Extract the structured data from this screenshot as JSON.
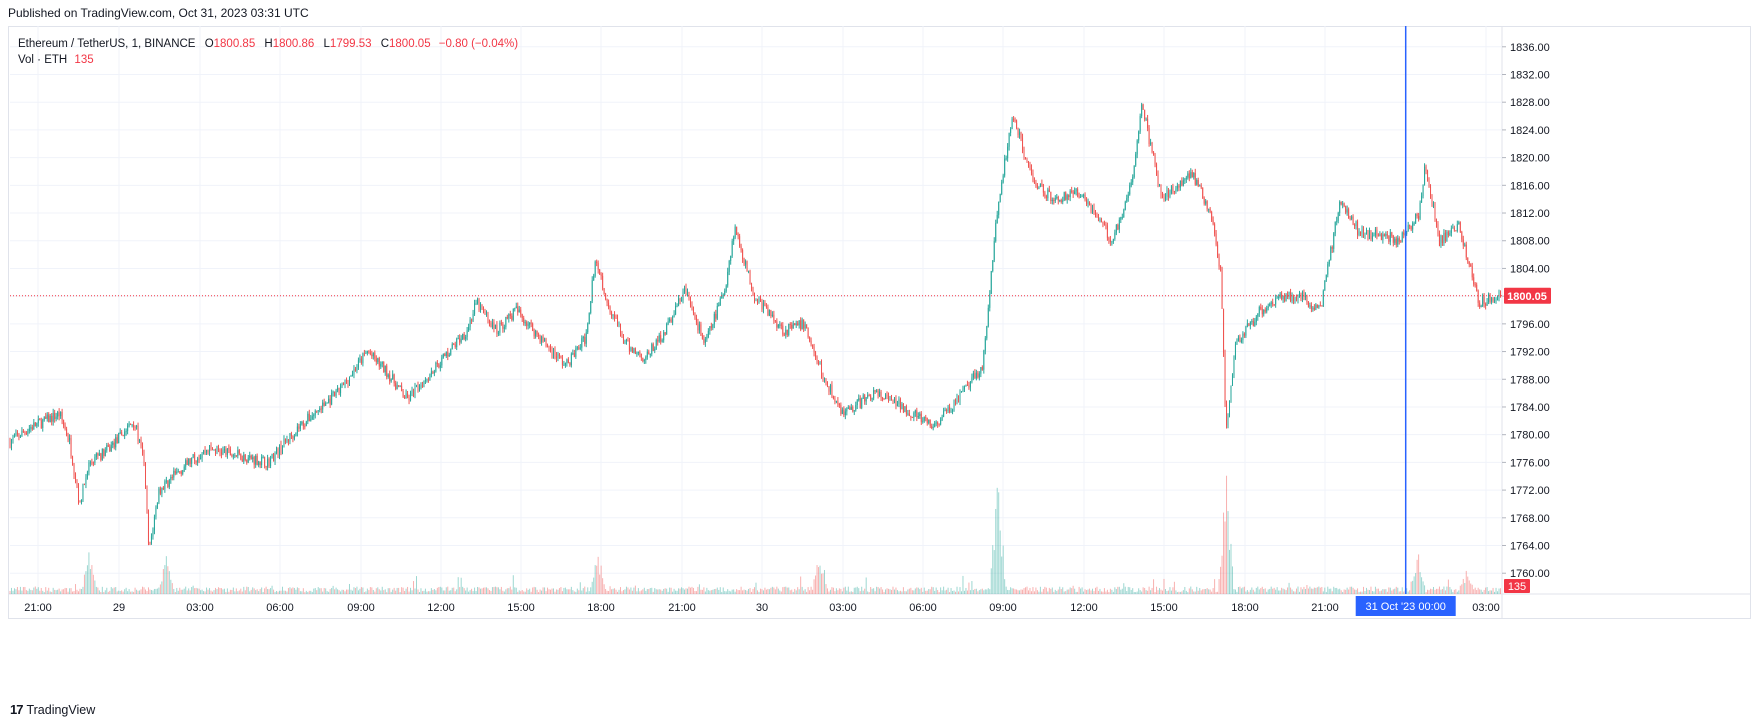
{
  "header": {
    "published": "Published on TradingView.com, Oct 31, 2023 03:31 UTC"
  },
  "legend": {
    "symbol": "Ethereum / TetherUS, 1, BINANCE",
    "open_label": "O",
    "open": "1800.85",
    "high_label": "H",
    "high": "1800.86",
    "low_label": "L",
    "low": "1799.53",
    "close_label": "C",
    "close": "1800.05",
    "change": "−0.80 (−0.04%)",
    "volume_label": "Vol · ETH",
    "volume": "135"
  },
  "footer": {
    "brand": "TradingView",
    "logo_glyph": "17"
  },
  "colors": {
    "up": "#26a69a",
    "down": "#ef5350",
    "accent": "#2962ff",
    "price_tag": "#f23645",
    "volume_tag": "#f23645",
    "grid": "#f0f3fa",
    "text": "#131722"
  },
  "chart_data": {
    "type": "candlestick",
    "symbol": "Ethereum / TetherUS",
    "interval": "1",
    "exchange": "BINANCE",
    "x_ticks": [
      "21:00",
      "29",
      "03:00",
      "06:00",
      "09:00",
      "12:00",
      "15:00",
      "18:00",
      "21:00",
      "30",
      "03:00",
      "06:00",
      "09:00",
      "12:00",
      "15:00",
      "18:00",
      "21:00",
      "31 Oct '23",
      "00:00",
      "03:00"
    ],
    "y_ticks": [
      "1760.00",
      "1764.00",
      "1768.00",
      "1772.00",
      "1776.00",
      "1780.00",
      "1784.00",
      "1788.00",
      "1792.00",
      "1796.00",
      "1800.00",
      "1804.00",
      "1808.00",
      "1812.00",
      "1816.00",
      "1820.00",
      "1824.00",
      "1828.00",
      "1832.00",
      "1836.00"
    ],
    "ylim": [
      1757,
      1839
    ],
    "last_price": "1800.05",
    "last_volume": "135",
    "crosshair_label": "31 Oct '23   00:00",
    "price_path": [
      [
        0,
        1779
      ],
      [
        20,
        1781
      ],
      [
        50,
        1783
      ],
      [
        60,
        1779
      ],
      [
        70,
        1770
      ],
      [
        80,
        1776
      ],
      [
        100,
        1778
      ],
      [
        125,
        1782
      ],
      [
        135,
        1776
      ],
      [
        140,
        1763
      ],
      [
        150,
        1772
      ],
      [
        180,
        1776
      ],
      [
        200,
        1778
      ],
      [
        230,
        1777
      ],
      [
        260,
        1776
      ],
      [
        290,
        1781
      ],
      [
        330,
        1786
      ],
      [
        360,
        1792
      ],
      [
        380,
        1789
      ],
      [
        400,
        1785
      ],
      [
        430,
        1790
      ],
      [
        460,
        1795
      ],
      [
        470,
        1799
      ],
      [
        490,
        1795
      ],
      [
        510,
        1798
      ],
      [
        540,
        1793
      ],
      [
        560,
        1790
      ],
      [
        580,
        1794
      ],
      [
        590,
        1806
      ],
      [
        600,
        1800
      ],
      [
        620,
        1793
      ],
      [
        640,
        1791
      ],
      [
        660,
        1795
      ],
      [
        680,
        1801
      ],
      [
        690,
        1797
      ],
      [
        700,
        1793
      ],
      [
        720,
        1801
      ],
      [
        730,
        1810
      ],
      [
        750,
        1800
      ],
      [
        780,
        1795
      ],
      [
        800,
        1796
      ],
      [
        820,
        1788
      ],
      [
        840,
        1783
      ],
      [
        870,
        1786
      ],
      [
        900,
        1784
      ],
      [
        930,
        1781
      ],
      [
        960,
        1786
      ],
      [
        980,
        1790
      ],
      [
        995,
        1813
      ],
      [
        1010,
        1826
      ],
      [
        1030,
        1817
      ],
      [
        1050,
        1814
      ],
      [
        1080,
        1815
      ],
      [
        1110,
        1808
      ],
      [
        1130,
        1816
      ],
      [
        1140,
        1828
      ],
      [
        1160,
        1814
      ],
      [
        1190,
        1818
      ],
      [
        1210,
        1812
      ],
      [
        1220,
        1803
      ],
      [
        1225,
        1780
      ],
      [
        1235,
        1793
      ],
      [
        1260,
        1798
      ],
      [
        1280,
        1800
      ],
      [
        1300,
        1800
      ],
      [
        1320,
        1798
      ],
      [
        1340,
        1814
      ],
      [
        1360,
        1809
      ],
      [
        1380,
        1809
      ],
      [
        1400,
        1808
      ],
      [
        1420,
        1812
      ],
      [
        1425,
        1819
      ],
      [
        1440,
        1808
      ],
      [
        1460,
        1810
      ],
      [
        1480,
        1799
      ],
      [
        1500,
        1800
      ]
    ],
    "volume_spikes": [
      {
        "t": 80,
        "v": 40
      },
      {
        "t": 157,
        "v": 35
      },
      {
        "t": 592,
        "v": 42
      },
      {
        "t": 816,
        "v": 45
      },
      {
        "t": 995,
        "v": 140
      },
      {
        "t": 1225,
        "v": 135
      },
      {
        "t": 1418,
        "v": 44
      },
      {
        "t": 1467,
        "v": 20
      }
    ],
    "t_range": [
      0,
      1502
    ],
    "volume_max": 150,
    "crosshair_t": 1406
  }
}
